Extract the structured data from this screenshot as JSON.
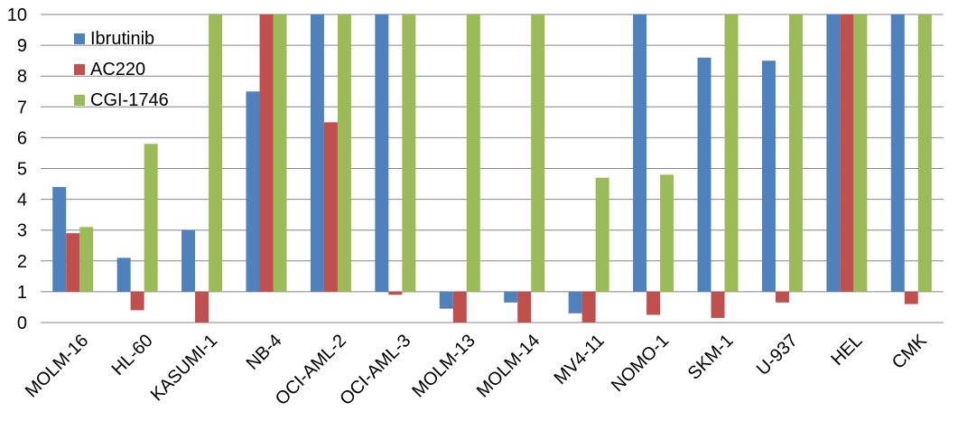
{
  "chart_data": {
    "type": "bar",
    "title": "",
    "xlabel": "",
    "ylabel": "",
    "ylim": [
      0,
      10
    ],
    "yticks": [
      "0",
      "1",
      "2",
      "3",
      "4",
      "5",
      "6",
      "7",
      "8",
      "9",
      "10"
    ],
    "grid": true,
    "legend_position": "top-left",
    "categories": [
      "MOLM-16",
      "HL-60",
      "KASUMI-1",
      "NB-4",
      "OCI-AML-2",
      "OCI-AML-3",
      "MOLM-13",
      "MOLM-14",
      "MV4-11",
      "NOMO-1",
      "SKM-1",
      "U-937",
      "HEL",
      "CMK"
    ],
    "series": [
      {
        "name": "Ibrutinib",
        "color": "#4F81BD",
        "values": [
          4.4,
          2.1,
          3.0,
          7.5,
          10,
          10,
          0.45,
          0.65,
          0.3,
          10,
          8.6,
          8.5,
          10,
          10
        ]
      },
      {
        "name": "AC220",
        "color": "#C0504D",
        "values": [
          2.9,
          0.4,
          0,
          10,
          6.5,
          0.9,
          0,
          0,
          0,
          0.25,
          0.15,
          0.65,
          10,
          0.6
        ]
      },
      {
        "name": "CGI-1746",
        "color": "#9BBB59",
        "values": [
          3.1,
          5.8,
          10,
          10,
          10,
          10,
          10,
          10,
          4.7,
          4.8,
          10,
          10,
          10,
          10
        ]
      }
    ]
  }
}
